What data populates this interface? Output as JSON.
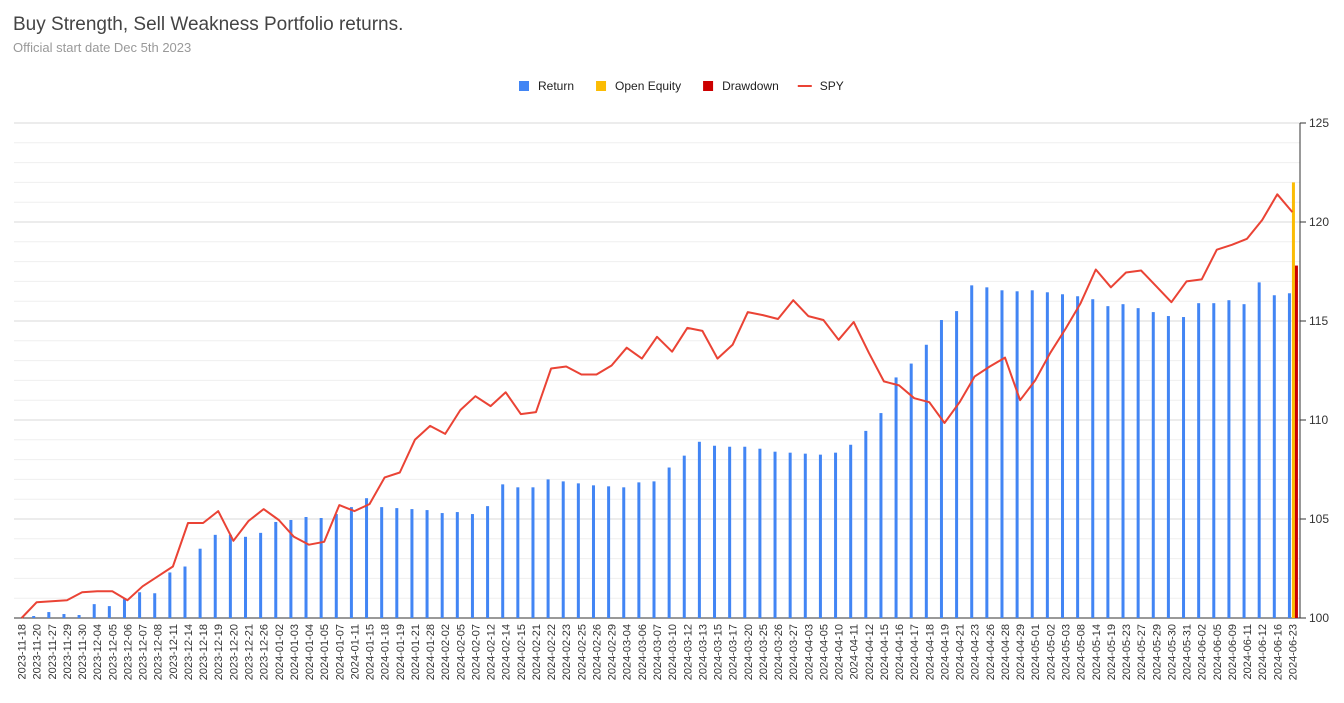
{
  "chart_data": {
    "type": "bar",
    "title": "Buy Strength, Sell Weakness Portfolio returns.",
    "subtitle": "Official start date Dec 5th 2023",
    "categories": [
      "2023-11-18",
      "2023-11-20",
      "2023-11-27",
      "2023-11-29",
      "2023-11-30",
      "2023-12-04",
      "2023-12-05",
      "2023-12-06",
      "2023-12-07",
      "2023-12-08",
      "2023-12-11",
      "2023-12-14",
      "2023-12-18",
      "2023-12-19",
      "2023-12-20",
      "2023-12-21",
      "2023-12-26",
      "2024-01-02",
      "2024-01-03",
      "2024-01-04",
      "2024-01-05",
      "2024-01-07",
      "2024-01-11",
      "2024-01-15",
      "2024-01-18",
      "2024-01-19",
      "2024-01-21",
      "2024-01-28",
      "2024-02-02",
      "2024-02-05",
      "2024-02-07",
      "2024-02-12",
      "2024-02-14",
      "2024-02-15",
      "2024-02-21",
      "2024-02-22",
      "2024-02-23",
      "2024-02-25",
      "2024-02-26",
      "2024-02-29",
      "2024-03-04",
      "2024-03-06",
      "2024-03-07",
      "2024-03-10",
      "2024-03-12",
      "2024-03-13",
      "2024-03-15",
      "2024-03-17",
      "2024-03-20",
      "2024-03-25",
      "2024-03-26",
      "2024-03-27",
      "2024-04-03",
      "2024-04-05",
      "2024-04-10",
      "2024-04-11",
      "2024-04-12",
      "2024-04-15",
      "2024-04-16",
      "2024-04-17",
      "2024-04-18",
      "2024-04-19",
      "2024-04-21",
      "2024-04-23",
      "2024-04-26",
      "2024-04-28",
      "2024-04-29",
      "2024-05-01",
      "2024-05-02",
      "2024-05-03",
      "2024-05-08",
      "2024-05-14",
      "2024-05-19",
      "2024-05-23",
      "2024-05-27",
      "2024-05-29",
      "2024-05-30",
      "2024-05-31",
      "2024-06-02",
      "2024-06-05",
      "2024-06-09",
      "2024-06-11",
      "2024-06-12",
      "2024-06-16",
      "2024-06-23"
    ],
    "series": [
      {
        "name": "Return",
        "type": "bar",
        "color": "#4285f4",
        "values": [
          null,
          100.1,
          100.3,
          100.2,
          100.15,
          100.7,
          100.6,
          101.0,
          101.3,
          101.25,
          102.3,
          102.6,
          103.5,
          104.2,
          104.2,
          104.1,
          104.3,
          104.85,
          104.95,
          105.1,
          105.05,
          105.25,
          105.6,
          106.05,
          105.6,
          105.55,
          105.5,
          105.45,
          105.3,
          105.35,
          105.25,
          105.65,
          106.75,
          106.6,
          106.6,
          107.0,
          106.9,
          106.8,
          106.7,
          106.65,
          106.6,
          106.85,
          106.9,
          107.6,
          108.2,
          108.9,
          108.7,
          108.65,
          108.65,
          108.55,
          108.4,
          108.35,
          108.3,
          108.25,
          108.35,
          108.75,
          109.45,
          110.35,
          112.15,
          112.85,
          113.8,
          115.05,
          115.5,
          116.8,
          116.7,
          116.55,
          116.5,
          116.55,
          116.45,
          116.35,
          116.25,
          116.1,
          115.75,
          115.85,
          115.65,
          115.45,
          115.25,
          115.2,
          115.9,
          115.9,
          116.05,
          115.85,
          116.95,
          116.3,
          116.4
        ]
      },
      {
        "name": "Open Equity",
        "type": "bar",
        "color": "#fbbc04",
        "values": [
          null,
          null,
          null,
          null,
          null,
          null,
          null,
          null,
          null,
          null,
          null,
          null,
          null,
          null,
          null,
          null,
          null,
          null,
          null,
          null,
          null,
          null,
          null,
          null,
          null,
          null,
          null,
          null,
          null,
          null,
          null,
          null,
          null,
          null,
          null,
          null,
          null,
          null,
          null,
          null,
          null,
          null,
          null,
          null,
          null,
          null,
          null,
          null,
          null,
          null,
          null,
          null,
          null,
          null,
          null,
          null,
          null,
          null,
          null,
          null,
          null,
          null,
          null,
          null,
          null,
          null,
          null,
          null,
          null,
          null,
          null,
          null,
          null,
          null,
          null,
          null,
          null,
          null,
          null,
          null,
          null,
          null,
          null,
          null,
          122
        ]
      },
      {
        "name": "Drawdown",
        "type": "bar",
        "color": "#cc0000",
        "values": [
          null,
          null,
          null,
          null,
          null,
          null,
          null,
          null,
          null,
          null,
          null,
          null,
          null,
          null,
          null,
          null,
          null,
          null,
          null,
          null,
          null,
          null,
          null,
          null,
          null,
          null,
          null,
          null,
          null,
          null,
          null,
          null,
          null,
          null,
          null,
          null,
          null,
          null,
          null,
          null,
          null,
          null,
          null,
          null,
          null,
          null,
          null,
          null,
          null,
          null,
          null,
          null,
          null,
          null,
          null,
          null,
          null,
          null,
          null,
          null,
          null,
          null,
          null,
          null,
          null,
          null,
          null,
          null,
          null,
          null,
          null,
          null,
          null,
          null,
          null,
          null,
          null,
          null,
          null,
          null,
          null,
          null,
          null,
          null,
          117.8
        ]
      },
      {
        "name": "SPY",
        "type": "line",
        "color": "#ea4335",
        "values": [
          100,
          100.8,
          100.85,
          100.9,
          101.3,
          101.35,
          101.35,
          100.9,
          101.6,
          102.1,
          102.6,
          104.8,
          104.8,
          105.4,
          103.9,
          104.9,
          105.5,
          104.95,
          104.1,
          103.7,
          103.85,
          105.7,
          105.4,
          105.75,
          107.1,
          107.35,
          109.0,
          109.7,
          109.3,
          110.5,
          111.2,
          110.7,
          111.4,
          110.3,
          110.4,
          112.6,
          112.7,
          112.3,
          112.3,
          112.75,
          113.65,
          113.1,
          114.2,
          113.45,
          114.65,
          114.5,
          113.1,
          113.8,
          115.45,
          115.3,
          115.1,
          116.05,
          115.25,
          115.05,
          114.05,
          114.95,
          113.4,
          111.95,
          111.75,
          111.1,
          110.9,
          109.85,
          110.9,
          112.2,
          112.7,
          113.15,
          111.0,
          112.0,
          113.4,
          114.6,
          115.9,
          117.6,
          116.7,
          117.45,
          117.55,
          116.75,
          115.95,
          117.0,
          117.1,
          118.6,
          118.85,
          119.15,
          120.1,
          121.4,
          120.5
        ]
      }
    ],
    "ylim": [
      100,
      125
    ],
    "yticks": [
      100,
      105,
      110,
      115,
      120,
      125
    ],
    "grid": true,
    "legend": "top"
  }
}
